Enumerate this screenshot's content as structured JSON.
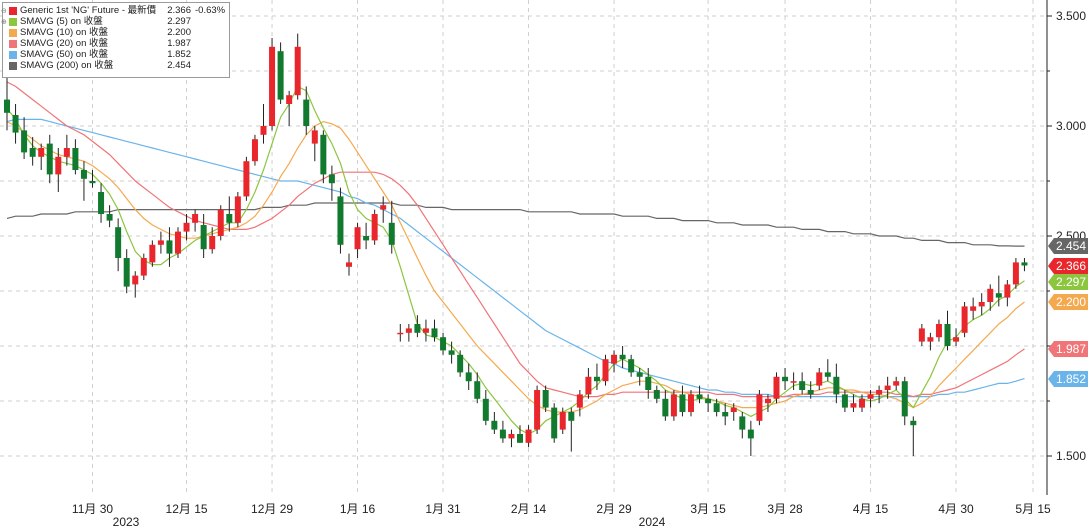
{
  "chart_data": {
    "type": "candlestick",
    "title": "Generic 1st 'NG' Future",
    "legend": [
      {
        "name": "Generic 1st 'NG' Future - 最新價",
        "value": "2.366",
        "change": "-0.63%",
        "color": "#e8262b"
      },
      {
        "name": "SMAVG (5)  on 收盤",
        "value": "2.297",
        "color": "#8cc63f"
      },
      {
        "name": "SMAVG (10)  on 收盤",
        "value": "2.200",
        "color": "#f5a94e"
      },
      {
        "name": "SMAVG (20)  on 收盤",
        "value": "1.987",
        "color": "#f07478"
      },
      {
        "name": "SMAVG (50)  on 收盤",
        "value": "1.852",
        "color": "#6ab4ea"
      },
      {
        "name": "SMAVG (200)  on 收盤",
        "value": "2.454",
        "color": "#666666"
      }
    ],
    "y_axis": {
      "min": 1.4,
      "max": 3.55,
      "ticks": [
        "1.500",
        "2.000",
        "2.500",
        "3.000",
        "3.500"
      ],
      "tick_values": [
        1.5,
        2.0,
        2.5,
        3.0,
        3.5
      ],
      "minor_ticks": [
        1.75,
        2.25,
        2.75,
        3.25
      ]
    },
    "x_axis": {
      "ticks": [
        "11月 30",
        "12月 15",
        "12月 29",
        "1月 16",
        "1月 31",
        "2月 14",
        "2月 29",
        "3月 15",
        "3月 28",
        "4月 15",
        "4月 30",
        "5月 15"
      ],
      "years": [
        "2023",
        "2024"
      ]
    },
    "value_tags": [
      {
        "value": 2.454,
        "label": "2.454",
        "color": "#666666"
      },
      {
        "value": 2.366,
        "label": "2.366",
        "color": "#e8262b"
      },
      {
        "value": 2.297,
        "label": "2.297",
        "color": "#8cc63f"
      },
      {
        "value": 2.2,
        "label": "2.200",
        "color": "#f5a94e"
      },
      {
        "value": 1.987,
        "label": "1.987",
        "color": "#f07478"
      },
      {
        "value": 1.852,
        "label": "1.852",
        "color": "#6ab4ea"
      }
    ],
    "candles_ohlc": [
      [
        3.12,
        3.25,
        2.98,
        3.06
      ],
      [
        3.05,
        3.1,
        2.92,
        2.97
      ],
      [
        2.98,
        3.04,
        2.85,
        2.88
      ],
      [
        2.9,
        2.95,
        2.82,
        2.86
      ],
      [
        2.86,
        2.92,
        2.8,
        2.9
      ],
      [
        2.92,
        2.96,
        2.74,
        2.78
      ],
      [
        2.78,
        2.9,
        2.7,
        2.86
      ],
      [
        2.86,
        2.96,
        2.82,
        2.9
      ],
      [
        2.9,
        2.94,
        2.78,
        2.8
      ],
      [
        2.8,
        2.84,
        2.66,
        2.76
      ],
      [
        2.75,
        2.8,
        2.72,
        2.74
      ],
      [
        2.7,
        2.74,
        2.56,
        2.6
      ],
      [
        2.6,
        2.64,
        2.54,
        2.57
      ],
      [
        2.54,
        2.58,
        2.34,
        2.4
      ],
      [
        2.4,
        2.44,
        2.24,
        2.27
      ],
      [
        2.28,
        2.34,
        2.22,
        2.32
      ],
      [
        2.32,
        2.42,
        2.3,
        2.4
      ],
      [
        2.38,
        2.48,
        2.36,
        2.46
      ],
      [
        2.46,
        2.52,
        2.42,
        2.48
      ],
      [
        2.48,
        2.54,
        2.36,
        2.42
      ],
      [
        2.42,
        2.54,
        2.4,
        2.52
      ],
      [
        2.52,
        2.6,
        2.48,
        2.56
      ],
      [
        2.56,
        2.62,
        2.52,
        2.6
      ],
      [
        2.55,
        2.6,
        2.4,
        2.44
      ],
      [
        2.44,
        2.54,
        2.42,
        2.5
      ],
      [
        2.5,
        2.64,
        2.48,
        2.62
      ],
      [
        2.6,
        2.68,
        2.52,
        2.56
      ],
      [
        2.56,
        2.7,
        2.54,
        2.68
      ],
      [
        2.68,
        2.86,
        2.66,
        2.84
      ],
      [
        2.84,
        2.96,
        2.82,
        2.94
      ],
      [
        2.96,
        3.1,
        2.92,
        3.0
      ],
      [
        3.0,
        3.4,
        2.98,
        3.36
      ],
      [
        3.34,
        3.38,
        3.1,
        3.12
      ],
      [
        3.1,
        3.16,
        3.0,
        3.14
      ],
      [
        3.14,
        3.42,
        3.12,
        3.36
      ],
      [
        3.12,
        3.18,
        2.96,
        3.0
      ],
      [
        2.92,
        3.0,
        2.84,
        2.98
      ],
      [
        2.96,
        2.98,
        2.74,
        2.78
      ],
      [
        2.78,
        2.82,
        2.66,
        2.74
      ],
      [
        2.68,
        2.72,
        2.42,
        2.46
      ],
      [
        2.36,
        2.42,
        2.32,
        2.38
      ],
      [
        2.44,
        2.56,
        2.4,
        2.54
      ],
      [
        2.5,
        2.56,
        2.44,
        2.48
      ],
      [
        2.48,
        2.62,
        2.46,
        2.6
      ],
      [
        2.62,
        2.68,
        2.56,
        2.64
      ],
      [
        2.56,
        2.66,
        2.42,
        2.46
      ],
      [
        2.06,
        2.1,
        2.02,
        2.06
      ],
      [
        2.06,
        2.1,
        2.02,
        2.08
      ],
      [
        2.1,
        2.14,
        2.04,
        2.06
      ],
      [
        2.06,
        2.12,
        2.02,
        2.08
      ],
      [
        2.08,
        2.12,
        2.02,
        2.04
      ],
      [
        2.04,
        2.06,
        1.96,
        1.98
      ],
      [
        1.98,
        2.02,
        1.92,
        1.96
      ],
      [
        1.96,
        1.98,
        1.86,
        1.88
      ],
      [
        1.88,
        1.92,
        1.8,
        1.84
      ],
      [
        1.84,
        1.88,
        1.74,
        1.76
      ],
      [
        1.76,
        1.8,
        1.64,
        1.66
      ],
      [
        1.66,
        1.7,
        1.6,
        1.62
      ],
      [
        1.62,
        1.66,
        1.56,
        1.58
      ],
      [
        1.58,
        1.62,
        1.54,
        1.6
      ],
      [
        1.6,
        1.64,
        1.56,
        1.56
      ],
      [
        1.56,
        1.64,
        1.54,
        1.62
      ],
      [
        1.62,
        1.82,
        1.6,
        1.8
      ],
      [
        1.8,
        1.82,
        1.7,
        1.72
      ],
      [
        1.72,
        1.74,
        1.56,
        1.58
      ],
      [
        1.62,
        1.72,
        1.6,
        1.7
      ],
      [
        1.7,
        1.72,
        1.52,
        1.66
      ],
      [
        1.72,
        1.8,
        1.68,
        1.78
      ],
      [
        1.78,
        1.9,
        1.76,
        1.86
      ],
      [
        1.86,
        1.92,
        1.8,
        1.84
      ],
      [
        1.84,
        1.96,
        1.82,
        1.94
      ],
      [
        1.92,
        1.98,
        1.88,
        1.96
      ],
      [
        1.96,
        2.0,
        1.9,
        1.94
      ],
      [
        1.94,
        1.96,
        1.86,
        1.88
      ],
      [
        1.88,
        1.9,
        1.82,
        1.86
      ],
      [
        1.86,
        1.9,
        1.76,
        1.8
      ],
      [
        1.8,
        1.82,
        1.74,
        1.76
      ],
      [
        1.76,
        1.8,
        1.66,
        1.68
      ],
      [
        1.68,
        1.8,
        1.66,
        1.78
      ],
      [
        1.78,
        1.82,
        1.68,
        1.7
      ],
      [
        1.7,
        1.8,
        1.68,
        1.78
      ],
      [
        1.78,
        1.82,
        1.74,
        1.76
      ],
      [
        1.76,
        1.78,
        1.7,
        1.74
      ],
      [
        1.74,
        1.76,
        1.68,
        1.7
      ],
      [
        1.7,
        1.74,
        1.64,
        1.68
      ],
      [
        1.7,
        1.74,
        1.66,
        1.72
      ],
      [
        1.68,
        1.7,
        1.58,
        1.62
      ],
      [
        1.62,
        1.66,
        1.5,
        1.58
      ],
      [
        1.66,
        1.8,
        1.64,
        1.78
      ],
      [
        1.74,
        1.78,
        1.7,
        1.76
      ],
      [
        1.76,
        1.88,
        1.74,
        1.86
      ],
      [
        1.86,
        1.9,
        1.8,
        1.84
      ],
      [
        1.84,
        1.88,
        1.8,
        1.84
      ],
      [
        1.84,
        1.88,
        1.78,
        1.8
      ],
      [
        1.8,
        1.84,
        1.76,
        1.78
      ],
      [
        1.82,
        1.9,
        1.8,
        1.88
      ],
      [
        1.88,
        1.94,
        1.84,
        1.86
      ],
      [
        1.86,
        1.92,
        1.74,
        1.78
      ],
      [
        1.78,
        1.8,
        1.7,
        1.72
      ],
      [
        1.72,
        1.78,
        1.7,
        1.74
      ],
      [
        1.72,
        1.78,
        1.7,
        1.76
      ],
      [
        1.76,
        1.8,
        1.72,
        1.78
      ],
      [
        1.78,
        1.82,
        1.74,
        1.8
      ],
      [
        1.8,
        1.86,
        1.76,
        1.82
      ],
      [
        1.82,
        1.86,
        1.8,
        1.84
      ],
      [
        1.84,
        1.86,
        1.64,
        1.68
      ],
      [
        1.66,
        1.68,
        1.5,
        1.64
      ],
      [
        2.02,
        2.1,
        2.0,
        2.08
      ],
      [
        2.02,
        2.06,
        1.98,
        2.04
      ],
      [
        2.04,
        2.12,
        2.02,
        2.1
      ],
      [
        2.1,
        2.16,
        1.98,
        2.0
      ],
      [
        2.02,
        2.08,
        2.0,
        2.04
      ],
      [
        2.06,
        2.2,
        2.04,
        2.18
      ],
      [
        2.16,
        2.22,
        2.12,
        2.18
      ],
      [
        2.18,
        2.24,
        2.14,
        2.2
      ],
      [
        2.2,
        2.28,
        2.16,
        2.26
      ],
      [
        2.24,
        2.32,
        2.18,
        2.22
      ],
      [
        2.22,
        2.3,
        2.18,
        2.28
      ],
      [
        2.28,
        2.4,
        2.26,
        2.38
      ],
      [
        2.38,
        2.4,
        2.34,
        2.366
      ]
    ],
    "sma5": [
      3.08,
      3.03,
      2.96,
      2.91,
      2.88,
      2.86,
      2.84,
      2.83,
      2.82,
      2.8,
      2.78,
      2.74,
      2.69,
      2.62,
      2.52,
      2.43,
      2.39,
      2.37,
      2.37,
      2.4,
      2.42,
      2.45,
      2.48,
      2.5,
      2.52,
      2.54,
      2.56,
      2.56,
      2.62,
      2.7,
      2.8,
      2.92,
      3.04,
      3.1,
      3.18,
      3.16,
      3.07,
      2.99,
      2.92,
      2.83,
      2.7,
      2.62,
      2.58,
      2.56,
      2.54,
      2.48,
      2.36,
      2.23,
      2.1,
      2.05,
      2.04,
      2.02,
      2.0,
      1.96,
      1.92,
      1.87,
      1.81,
      1.76,
      1.71,
      1.66,
      1.62,
      1.6,
      1.62,
      1.66,
      1.68,
      1.7,
      1.72,
      1.75,
      1.79,
      1.82,
      1.87,
      1.92,
      1.94,
      1.92,
      1.9,
      1.87,
      1.84,
      1.8,
      1.78,
      1.76,
      1.75,
      1.76,
      1.76,
      1.75,
      1.73,
      1.72,
      1.7,
      1.68,
      1.7,
      1.72,
      1.76,
      1.79,
      1.82,
      1.83,
      1.82,
      1.83,
      1.84,
      1.82,
      1.8,
      1.78,
      1.76,
      1.75,
      1.76,
      1.78,
      1.8,
      1.76,
      1.72,
      1.79,
      1.86,
      1.95,
      2.02,
      2.04,
      2.09,
      2.12,
      2.14,
      2.17,
      2.21,
      2.23,
      2.27,
      2.297
    ],
    "sma10": [
      3.02,
      3.0,
      2.97,
      2.94,
      2.91,
      2.89,
      2.87,
      2.86,
      2.85,
      2.84,
      2.82,
      2.79,
      2.76,
      2.72,
      2.67,
      2.62,
      2.58,
      2.55,
      2.53,
      2.51,
      2.5,
      2.49,
      2.49,
      2.5,
      2.51,
      2.52,
      2.53,
      2.54,
      2.56,
      2.59,
      2.64,
      2.7,
      2.77,
      2.83,
      2.9,
      2.96,
      3.0,
      3.02,
      3.01,
      2.99,
      2.94,
      2.88,
      2.82,
      2.76,
      2.7,
      2.64,
      2.56,
      2.48,
      2.4,
      2.32,
      2.25,
      2.2,
      2.15,
      2.1,
      2.05,
      2.0,
      1.96,
      1.92,
      1.88,
      1.84,
      1.8,
      1.76,
      1.73,
      1.71,
      1.7,
      1.7,
      1.7,
      1.71,
      1.73,
      1.75,
      1.78,
      1.8,
      1.82,
      1.83,
      1.84,
      1.84,
      1.83,
      1.82,
      1.8,
      1.79,
      1.78,
      1.77,
      1.76,
      1.75,
      1.74,
      1.73,
      1.72,
      1.72,
      1.72,
      1.73,
      1.74,
      1.75,
      1.77,
      1.78,
      1.79,
      1.8,
      1.81,
      1.81,
      1.8,
      1.8,
      1.79,
      1.78,
      1.78,
      1.77,
      1.76,
      1.74,
      1.72,
      1.74,
      1.77,
      1.82,
      1.86,
      1.9,
      1.94,
      1.98,
      2.02,
      2.06,
      2.1,
      2.13,
      2.17,
      2.2
    ],
    "sma20": [
      3.2,
      3.18,
      3.15,
      3.12,
      3.09,
      3.06,
      3.03,
      3.0,
      2.98,
      2.96,
      2.93,
      2.9,
      2.87,
      2.83,
      2.79,
      2.75,
      2.72,
      2.69,
      2.66,
      2.63,
      2.61,
      2.59,
      2.57,
      2.56,
      2.55,
      2.54,
      2.53,
      2.53,
      2.53,
      2.54,
      2.56,
      2.58,
      2.61,
      2.64,
      2.68,
      2.71,
      2.74,
      2.76,
      2.78,
      2.79,
      2.79,
      2.79,
      2.79,
      2.79,
      2.78,
      2.76,
      2.73,
      2.69,
      2.64,
      2.58,
      2.52,
      2.46,
      2.4,
      2.34,
      2.28,
      2.22,
      2.16,
      2.1,
      2.04,
      1.98,
      1.92,
      1.88,
      1.84,
      1.81,
      1.8,
      1.79,
      1.78,
      1.77,
      1.77,
      1.77,
      1.78,
      1.78,
      1.79,
      1.79,
      1.79,
      1.79,
      1.79,
      1.79,
      1.79,
      1.79,
      1.79,
      1.79,
      1.79,
      1.78,
      1.78,
      1.78,
      1.77,
      1.77,
      1.77,
      1.77,
      1.77,
      1.77,
      1.78,
      1.78,
      1.78,
      1.78,
      1.79,
      1.79,
      1.79,
      1.79,
      1.79,
      1.79,
      1.79,
      1.79,
      1.78,
      1.78,
      1.77,
      1.78,
      1.78,
      1.79,
      1.8,
      1.81,
      1.83,
      1.85,
      1.87,
      1.89,
      1.91,
      1.93,
      1.96,
      1.987
    ],
    "sma50": [
      3.02,
      3.03,
      3.03,
      3.03,
      3.03,
      3.02,
      3.01,
      3.0,
      2.99,
      2.98,
      2.97,
      2.96,
      2.95,
      2.94,
      2.93,
      2.92,
      2.91,
      2.9,
      2.89,
      2.88,
      2.87,
      2.86,
      2.85,
      2.84,
      2.83,
      2.82,
      2.81,
      2.8,
      2.79,
      2.78,
      2.77,
      2.76,
      2.75,
      2.75,
      2.75,
      2.74,
      2.73,
      2.72,
      2.71,
      2.7,
      2.68,
      2.67,
      2.65,
      2.64,
      2.62,
      2.6,
      2.58,
      2.55,
      2.52,
      2.49,
      2.46,
      2.43,
      2.4,
      2.37,
      2.34,
      2.31,
      2.28,
      2.25,
      2.22,
      2.19,
      2.16,
      2.13,
      2.1,
      2.07,
      2.05,
      2.03,
      2.01,
      1.99,
      1.97,
      1.95,
      1.93,
      1.92,
      1.9,
      1.89,
      1.88,
      1.87,
      1.86,
      1.85,
      1.84,
      1.83,
      1.82,
      1.81,
      1.8,
      1.8,
      1.79,
      1.79,
      1.78,
      1.78,
      1.78,
      1.78,
      1.77,
      1.77,
      1.77,
      1.77,
      1.77,
      1.77,
      1.77,
      1.77,
      1.77,
      1.77,
      1.77,
      1.77,
      1.77,
      1.77,
      1.77,
      1.77,
      1.77,
      1.77,
      1.77,
      1.78,
      1.78,
      1.79,
      1.79,
      1.8,
      1.81,
      1.82,
      1.83,
      1.83,
      1.84,
      1.852
    ],
    "sma200": [
      2.58,
      2.59,
      2.59,
      2.59,
      2.6,
      2.6,
      2.6,
      2.6,
      2.61,
      2.61,
      2.61,
      2.61,
      2.61,
      2.62,
      2.62,
      2.62,
      2.62,
      2.62,
      2.62,
      2.62,
      2.62,
      2.62,
      2.62,
      2.62,
      2.62,
      2.62,
      2.62,
      2.62,
      2.62,
      2.62,
      2.63,
      2.63,
      2.63,
      2.64,
      2.64,
      2.64,
      2.65,
      2.65,
      2.65,
      2.65,
      2.65,
      2.65,
      2.65,
      2.65,
      2.65,
      2.65,
      2.64,
      2.64,
      2.64,
      2.63,
      2.63,
      2.63,
      2.62,
      2.62,
      2.62,
      2.62,
      2.62,
      2.62,
      2.62,
      2.62,
      2.62,
      2.61,
      2.61,
      2.61,
      2.61,
      2.61,
      2.61,
      2.6,
      2.6,
      2.6,
      2.6,
      2.6,
      2.59,
      2.59,
      2.59,
      2.59,
      2.58,
      2.58,
      2.58,
      2.57,
      2.57,
      2.57,
      2.57,
      2.56,
      2.56,
      2.56,
      2.55,
      2.55,
      2.55,
      2.55,
      2.54,
      2.54,
      2.54,
      2.53,
      2.53,
      2.53,
      2.52,
      2.52,
      2.52,
      2.51,
      2.51,
      2.51,
      2.5,
      2.5,
      2.5,
      2.49,
      2.49,
      2.48,
      2.48,
      2.48,
      2.47,
      2.47,
      2.47,
      2.46,
      2.46,
      2.46,
      2.455,
      2.455,
      2.454,
      2.454
    ]
  }
}
